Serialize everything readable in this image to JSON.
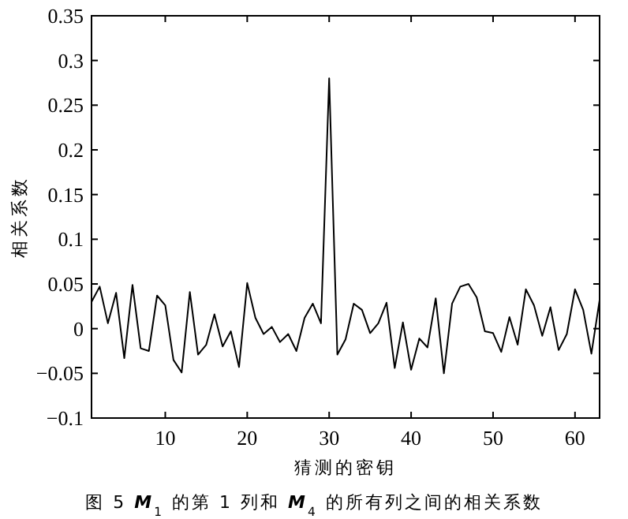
{
  "chart_data": {
    "type": "line",
    "title": "图 5 **M**$_{1}$ 的第 1 列和 **M**$_{4}$ 的所有列之间的相关系数",
    "xlabel": "猜测的密钥",
    "ylabel": "相关系数",
    "x": [
      1,
      2,
      3,
      4,
      5,
      6,
      7,
      8,
      9,
      10,
      11,
      12,
      13,
      14,
      15,
      16,
      17,
      18,
      19,
      20,
      21,
      22,
      23,
      24,
      25,
      26,
      27,
      28,
      29,
      30,
      31,
      32,
      33,
      34,
      35,
      36,
      37,
      38,
      39,
      40,
      41,
      42,
      43,
      44,
      45,
      46,
      47,
      48,
      49,
      50,
      51,
      52,
      53,
      54,
      55,
      56,
      57,
      58,
      59,
      60,
      61,
      62,
      63
    ],
    "series": [
      {
        "color": "#000000",
        "values": [
          0.03,
          0.047,
          0.006,
          0.04,
          -0.033,
          0.049,
          -0.022,
          -0.025,
          0.037,
          0.026,
          -0.035,
          -0.049,
          0.041,
          -0.029,
          -0.018,
          0.016,
          -0.02,
          -0.003,
          -0.043,
          0.051,
          0.012,
          -0.006,
          0.002,
          -0.015,
          -0.006,
          -0.025,
          0.012,
          0.028,
          0.006,
          0.28,
          -0.029,
          -0.012,
          0.028,
          0.021,
          -0.005,
          0.006,
          0.029,
          -0.044,
          0.007,
          -0.046,
          -0.011,
          -0.021,
          0.034,
          -0.05,
          0.028,
          0.047,
          0.05,
          0.035,
          -0.003,
          -0.005,
          -0.026,
          0.013,
          -0.018,
          0.044,
          0.026,
          -0.008,
          0.024,
          -0.024,
          -0.006,
          0.044,
          0.021,
          -0.028,
          0.032
        ]
      }
    ],
    "xlim": [
      1,
      63
    ],
    "ylim": [
      -0.1,
      0.35
    ],
    "xticks": [
      10,
      20,
      30,
      40,
      50,
      60
    ],
    "yticks": [
      {
        "value": -0.1,
        "label": "−0.1"
      },
      {
        "value": -0.05,
        "label": "−0.05"
      },
      0,
      0.05,
      0.1,
      0.15,
      0.2,
      0.25,
      0.3,
      0.35
    ]
  }
}
